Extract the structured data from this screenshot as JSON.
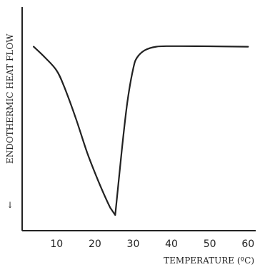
{
  "chart_data": {
    "type": "line",
    "title": "",
    "xlabel": "TEMPERATURE (ºC)",
    "ylabel": "ENDOTHERMIC HEAT FLOW",
    "ylabel_arrow": "↓",
    "xlim": [
      1,
      62
    ],
    "ylim": [
      0,
      100
    ],
    "x_ticks": [
      10,
      20,
      30,
      40,
      50,
      60
    ],
    "x_tick_labels": [
      "10",
      "20",
      "30",
      "40",
      "50",
      "60"
    ],
    "grid": false,
    "series": [
      {
        "x": [
          4,
          7,
          10,
          12,
          15,
          18,
          21,
          24,
          25.3,
          27,
          28.5,
          30,
          31,
          33,
          36,
          40,
          50,
          60
        ],
        "y": [
          92,
          86,
          79,
          70,
          53,
          34,
          18,
          4,
          0,
          35,
          62,
          80,
          86,
          90,
          92,
          92.3,
          92.2,
          92
        ]
      }
    ]
  }
}
